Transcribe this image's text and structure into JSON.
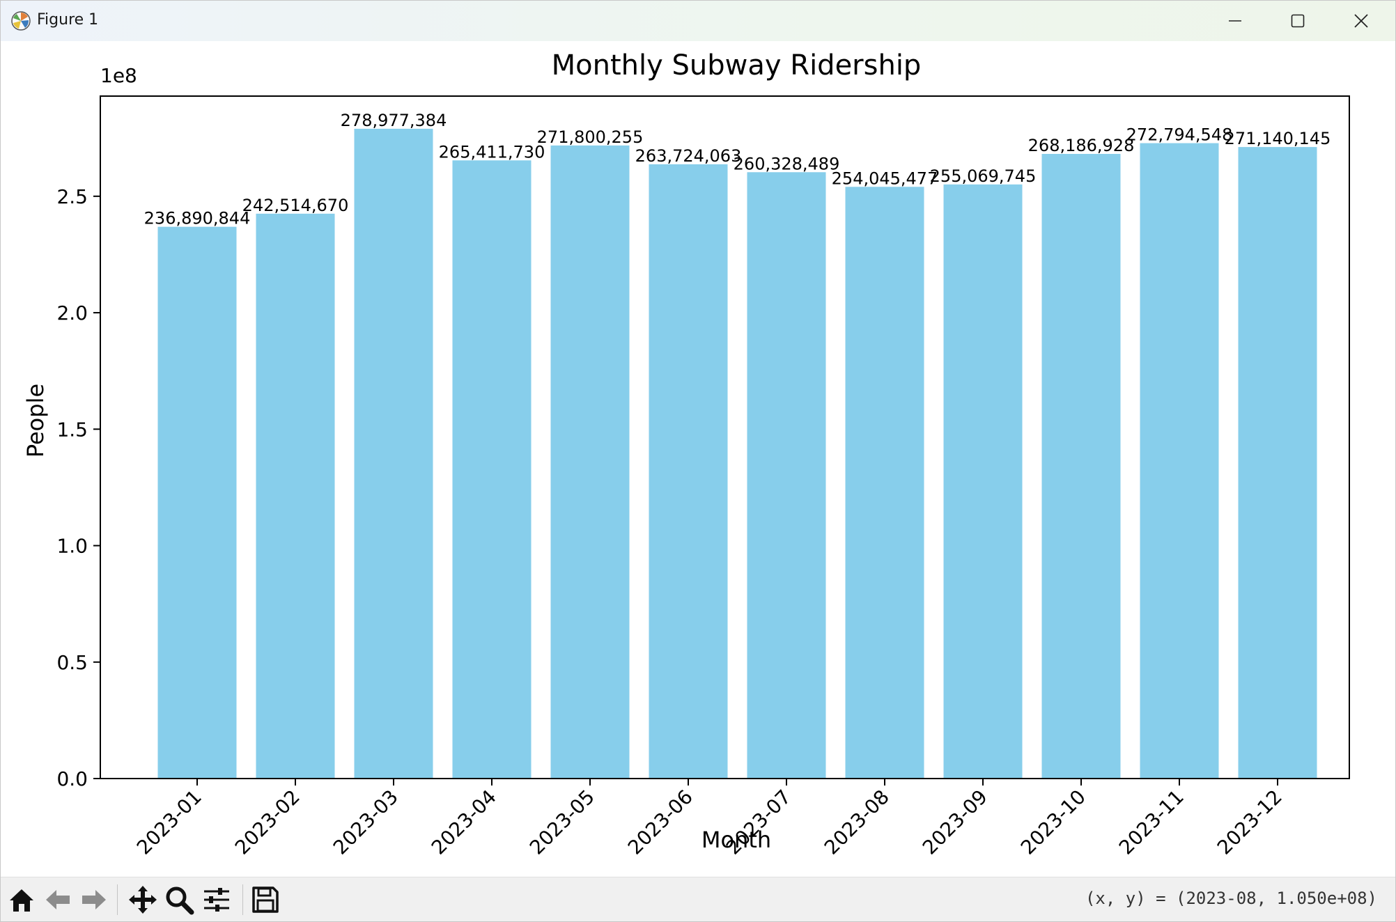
{
  "window": {
    "title": "Figure 1",
    "minimize_icon": "minimize-icon",
    "maximize_icon": "maximize-icon",
    "close_icon": "close-icon",
    "app_icon": "matplotlib-logo-icon"
  },
  "toolbar": {
    "tools": [
      "home-icon",
      "back-arrow-icon",
      "forward-arrow-icon",
      "pan-icon",
      "zoom-icon",
      "configure-subplots-icon",
      "save-icon"
    ],
    "coordinates": "(x, y) = (2023-08, 1.050e+08)"
  },
  "chart_data": {
    "type": "bar",
    "title": "Monthly Subway Ridership",
    "xlabel": "Month",
    "ylabel": "People",
    "offset_label": "1e8",
    "categories": [
      "2023-01",
      "2023-02",
      "2023-03",
      "2023-04",
      "2023-05",
      "2023-06",
      "2023-07",
      "2023-08",
      "2023-09",
      "2023-10",
      "2023-11",
      "2023-12"
    ],
    "values": [
      236890844,
      242514670,
      278977384,
      265411730,
      271800255,
      263724063,
      260328489,
      254045477,
      255069745,
      268186928,
      272794548,
      271140145
    ],
    "value_labels": [
      "236,890,844",
      "242,514,670",
      "278,977,384",
      "265,411,730",
      "271,800,255",
      "263,724,063",
      "260,328,489",
      "254,045,477",
      "255,069,745",
      "268,186,928",
      "272,794,548",
      "271,140,145"
    ],
    "y_ticks": [
      0,
      50000000,
      100000000,
      150000000,
      200000000,
      250000000
    ],
    "y_tick_labels": [
      "0.0",
      "0.5",
      "1.0",
      "1.5",
      "2.0",
      "2.5"
    ],
    "ylim": [
      0,
      293000000
    ],
    "grid": false,
    "bar_color": "#87ceeb"
  }
}
